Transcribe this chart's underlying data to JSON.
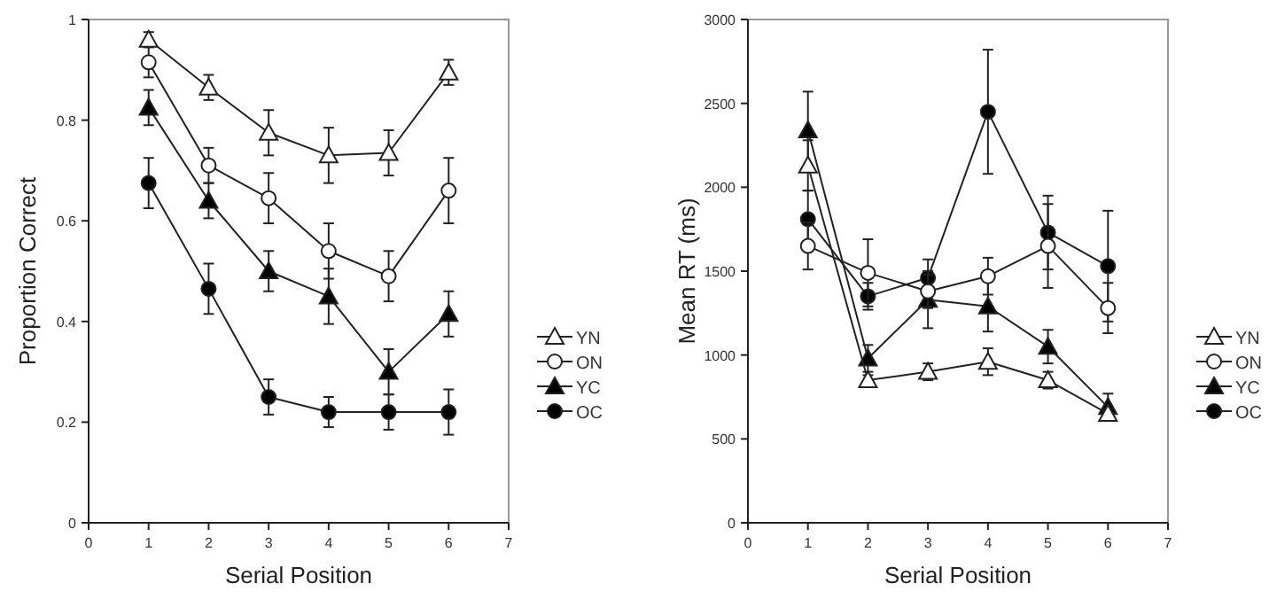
{
  "chart_data": [
    {
      "type": "line",
      "xlabel": "Serial Position",
      "ylabel": "Proportion Correct",
      "x": [
        1,
        2,
        3,
        4,
        5,
        6
      ],
      "xlim": [
        0,
        7
      ],
      "xticks": [
        0,
        1,
        2,
        3,
        4,
        5,
        6,
        7
      ],
      "ylim": [
        0,
        1
      ],
      "yticks": [
        0,
        0.2,
        0.4,
        0.6,
        0.8,
        1
      ],
      "grid": false,
      "legend": "right",
      "series": [
        {
          "name": "YN",
          "color": "#ffffff",
          "marker": "triangle",
          "values": [
            0.96,
            0.865,
            0.775,
            0.73,
            0.735,
            0.895
          ],
          "errors": [
            0.015,
            0.025,
            0.045,
            0.055,
            0.045,
            0.025
          ]
        },
        {
          "name": "ON",
          "color": "#ffffff",
          "marker": "circle",
          "values": [
            0.915,
            0.71,
            0.645,
            0.54,
            0.49,
            0.66
          ],
          "errors": [
            0.03,
            0.035,
            0.05,
            0.055,
            0.05,
            0.065
          ]
        },
        {
          "name": "YC",
          "color": "#000000",
          "marker": "triangle",
          "values": [
            0.825,
            0.64,
            0.5,
            0.45,
            0.3,
            0.415
          ],
          "errors": [
            0.035,
            0.035,
            0.04,
            0.055,
            0.045,
            0.045
          ]
        },
        {
          "name": "OC",
          "color": "#000000",
          "marker": "circle",
          "values": [
            0.675,
            0.465,
            0.25,
            0.22,
            0.22,
            0.22
          ],
          "errors": [
            0.05,
            0.05,
            0.035,
            0.03,
            0.035,
            0.045
          ]
        }
      ]
    },
    {
      "type": "line",
      "xlabel": "Serial Position",
      "ylabel": "Mean RT (ms)",
      "x": [
        1,
        2,
        3,
        4,
        5,
        6
      ],
      "xlim": [
        0,
        7
      ],
      "xticks": [
        0,
        1,
        2,
        3,
        4,
        5,
        6,
        7
      ],
      "ylim": [
        0,
        3000
      ],
      "yticks": [
        0,
        500,
        1000,
        1500,
        2000,
        2500,
        3000
      ],
      "grid": false,
      "legend": "right",
      "series": [
        {
          "name": "YN",
          "color": "#ffffff",
          "marker": "triangle",
          "values": [
            2130,
            850,
            900,
            960,
            850,
            650
          ],
          "errors": [
            150,
            30,
            50,
            80,
            50,
            30
          ]
        },
        {
          "name": "ON",
          "color": "#ffffff",
          "marker": "circle",
          "values": [
            1650,
            1490,
            1380,
            1470,
            1650,
            1280
          ],
          "errors": [
            140,
            200,
            100,
            110,
            250,
            150
          ]
        },
        {
          "name": "YC",
          "color": "#000000",
          "marker": "triangle",
          "values": [
            2340,
            980,
            1330,
            1290,
            1050,
            690
          ],
          "errors": [
            230,
            80,
            170,
            150,
            100,
            80
          ]
        },
        {
          "name": "OC",
          "color": "#000000",
          "marker": "circle",
          "values": [
            1810,
            1350,
            1460,
            2450,
            1730,
            1530
          ],
          "errors": [
            170,
            80,
            110,
            370,
            220,
            330
          ]
        }
      ]
    }
  ]
}
